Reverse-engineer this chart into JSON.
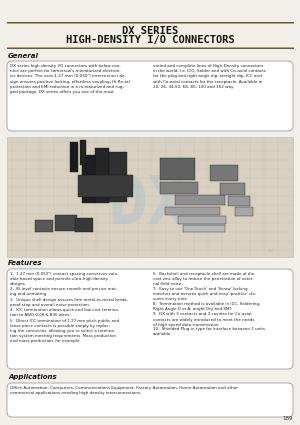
{
  "title_line1": "DX SERIES",
  "title_line2": "HIGH-DENSITY I/O CONNECTORS",
  "page_bg": "#f2efe8",
  "title_color": "#111111",
  "section_general_title": "General",
  "section_features_title": "Features",
  "section_applications_title": "Applications",
  "page_number": "189",
  "box_edge_color": "#999999",
  "text_color": "#222222",
  "separator_dark": "#555555",
  "separator_gold": "#b89040",
  "gen_text_left": "DX series high-density I/O connectors with below con-\nnect are perfect for tomorrow's miniaturized electron-\nics devices. The uses 1.27 mm (0.050\") interconnect de-\nsign ensures positive locking, effortless coupling, Hi-Re-tal\nprotection and EMI reduction in a miniaturized and rug-\nged package. DX series offers you one of the most",
  "gen_text_right": "varied and complete lines of High-Density connectors\nin the world, i.e. ICO, Solder and with Co-axial contacts\nfor the plug and right angle dip, straight dip, ICC and\nwith Co-axial contacts for the receptacle. Available in\n20, 26, 34,50, 68, 80, 100 and 152 way.",
  "feat_left": [
    "1.27 mm (0.050\") contact spacing conserves valu-\nable board space and permits ultra-high density\ndesigns.",
    "Bi-level contacts ensure smooth and precise mat-\ning and unmating.",
    "Unique shell design assures firm metal-to-metal break-\nproof stop and overall noise protection.",
    "ICC termination allows quick and low cost termina-\ntion to AWG 0.08 & B30 wires.",
    "Direct ICC termination of 1.27 mm pitch public and\nloose piece contacts is possible simply by replac-\ning the connector, allowing you to select a termina-\ntion system meeting requirements. Mass production\nand mass production, for example."
  ],
  "feat_right": [
    "Backshell and receptacle shell are made of die-\ncast zinc alloy to reduce the penetration of exter-\nnal field noise.",
    "Easy to use 'One-Touch' and 'Screw' locking\nmatches and assures quick and easy 'positive' clo-\nsures every time.",
    "Termination method is available in IDC, Soldering,\nRight Angle D or A, aright Dry and SMT.",
    "DX with 3 contacts and 3 cavities for Co-axial\ncontacts are widely introduced to meet the needs\nof high speed data transmission.",
    "Shielded Plug-in type for interface between 2 units\navailable."
  ],
  "app_text": "Office Automation, Computers, Communications Equipment, Factory Automation, Home Automation and other\ncommercial applications needing high density interconnections.",
  "img_colors": [
    "#2a2a2a",
    "#383838",
    "#4a4a4a",
    "#555555",
    "#3a3a3a",
    "#6a6a6a",
    "#7a7a7a",
    "#909090",
    "#484848"
  ],
  "img_bg": "#d8d0c0",
  "img_grid": "#c8c0b0"
}
